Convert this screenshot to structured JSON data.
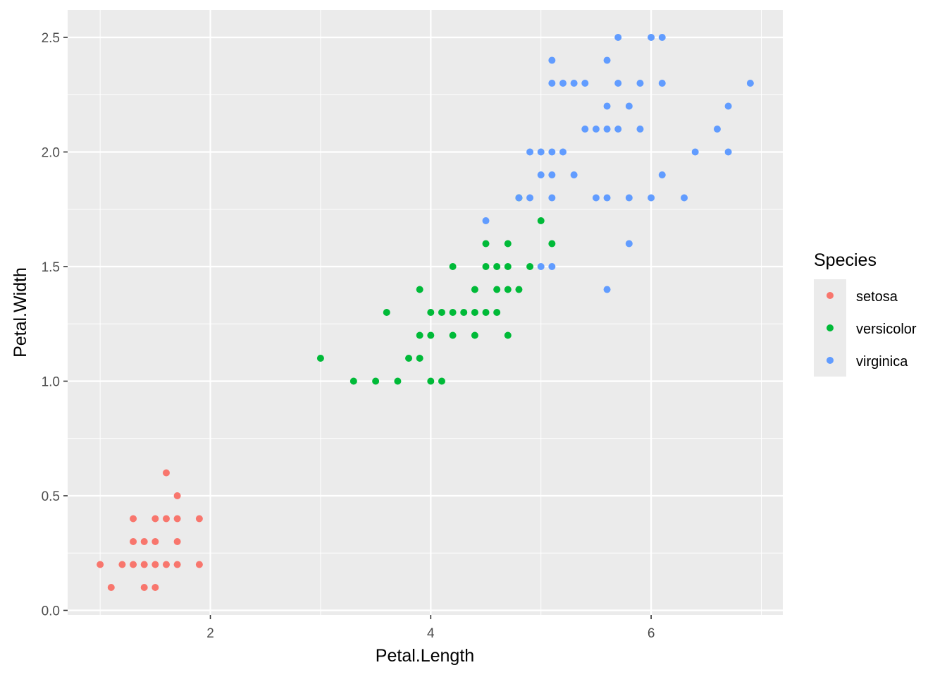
{
  "chart_data": {
    "type": "scatter",
    "xlabel": "Petal.Length",
    "ylabel": "Petal.Width",
    "xlim": [
      0.705,
      7.195
    ],
    "ylim": [
      -0.02,
      2.62
    ],
    "x_ticks": [
      2,
      4,
      6
    ],
    "x_tick_labels": [
      "2",
      "4",
      "6"
    ],
    "y_ticks": [
      0.0,
      0.5,
      1.0,
      1.5,
      2.0,
      2.5
    ],
    "y_tick_labels": [
      "0.0",
      "0.5",
      "1.0",
      "1.5",
      "2.0",
      "2.5"
    ],
    "grid": true,
    "panel_background": "#ebebeb",
    "legend": {
      "title": "Species",
      "position": "right",
      "entries": [
        {
          "label": "setosa",
          "color": "#F8766D"
        },
        {
          "label": "versicolor",
          "color": "#00BA38"
        },
        {
          "label": "virginica",
          "color": "#619CFF"
        }
      ]
    },
    "series": [
      {
        "name": "setosa",
        "color": "#F8766D",
        "points": [
          [
            1.0,
            0.2
          ],
          [
            1.1,
            0.1
          ],
          [
            1.2,
            0.2
          ],
          [
            1.3,
            0.2
          ],
          [
            1.3,
            0.3
          ],
          [
            1.3,
            0.4
          ],
          [
            1.4,
            0.1
          ],
          [
            1.4,
            0.2
          ],
          [
            1.4,
            0.3
          ],
          [
            1.5,
            0.1
          ],
          [
            1.5,
            0.2
          ],
          [
            1.5,
            0.3
          ],
          [
            1.5,
            0.4
          ],
          [
            1.6,
            0.2
          ],
          [
            1.6,
            0.4
          ],
          [
            1.6,
            0.6
          ],
          [
            1.7,
            0.2
          ],
          [
            1.7,
            0.3
          ],
          [
            1.7,
            0.4
          ],
          [
            1.7,
            0.5
          ],
          [
            1.9,
            0.2
          ],
          [
            1.9,
            0.4
          ]
        ]
      },
      {
        "name": "versicolor",
        "color": "#00BA38",
        "points": [
          [
            3.0,
            1.1
          ],
          [
            3.3,
            1.0
          ],
          [
            3.5,
            1.0
          ],
          [
            3.6,
            1.3
          ],
          [
            3.7,
            1.0
          ],
          [
            3.8,
            1.1
          ],
          [
            3.9,
            1.1
          ],
          [
            3.9,
            1.2
          ],
          [
            3.9,
            1.4
          ],
          [
            4.0,
            1.0
          ],
          [
            4.0,
            1.2
          ],
          [
            4.0,
            1.3
          ],
          [
            4.1,
            1.0
          ],
          [
            4.1,
            1.3
          ],
          [
            4.2,
            1.2
          ],
          [
            4.2,
            1.3
          ],
          [
            4.2,
            1.5
          ],
          [
            4.3,
            1.3
          ],
          [
            4.4,
            1.2
          ],
          [
            4.4,
            1.3
          ],
          [
            4.4,
            1.4
          ],
          [
            4.5,
            1.3
          ],
          [
            4.5,
            1.5
          ],
          [
            4.5,
            1.6
          ],
          [
            4.6,
            1.3
          ],
          [
            4.6,
            1.4
          ],
          [
            4.6,
            1.5
          ],
          [
            4.7,
            1.2
          ],
          [
            4.7,
            1.4
          ],
          [
            4.7,
            1.5
          ],
          [
            4.7,
            1.6
          ],
          [
            4.8,
            1.4
          ],
          [
            4.8,
            1.8
          ],
          [
            4.9,
            1.5
          ],
          [
            5.0,
            1.7
          ],
          [
            5.1,
            1.6
          ]
        ]
      },
      {
        "name": "virginica",
        "color": "#619CFF",
        "points": [
          [
            4.5,
            1.7
          ],
          [
            4.8,
            1.8
          ],
          [
            4.9,
            1.8
          ],
          [
            4.9,
            2.0
          ],
          [
            5.0,
            1.5
          ],
          [
            5.0,
            1.9
          ],
          [
            5.0,
            2.0
          ],
          [
            5.1,
            1.5
          ],
          [
            5.1,
            1.8
          ],
          [
            5.1,
            1.9
          ],
          [
            5.1,
            2.0
          ],
          [
            5.1,
            2.3
          ],
          [
            5.1,
            2.4
          ],
          [
            5.2,
            2.0
          ],
          [
            5.2,
            2.3
          ],
          [
            5.3,
            1.9
          ],
          [
            5.3,
            2.3
          ],
          [
            5.4,
            2.1
          ],
          [
            5.4,
            2.3
          ],
          [
            5.5,
            1.8
          ],
          [
            5.5,
            2.1
          ],
          [
            5.6,
            1.4
          ],
          [
            5.6,
            1.8
          ],
          [
            5.6,
            2.1
          ],
          [
            5.6,
            2.2
          ],
          [
            5.6,
            2.4
          ],
          [
            5.7,
            2.1
          ],
          [
            5.7,
            2.3
          ],
          [
            5.7,
            2.5
          ],
          [
            5.8,
            1.6
          ],
          [
            5.8,
            1.8
          ],
          [
            5.8,
            2.2
          ],
          [
            5.9,
            2.1
          ],
          [
            5.9,
            2.3
          ],
          [
            6.0,
            1.8
          ],
          [
            6.0,
            2.5
          ],
          [
            6.1,
            1.9
          ],
          [
            6.1,
            2.3
          ],
          [
            6.1,
            2.5
          ],
          [
            6.3,
            1.8
          ],
          [
            6.4,
            2.0
          ],
          [
            6.6,
            2.1
          ],
          [
            6.7,
            2.0
          ],
          [
            6.7,
            2.2
          ],
          [
            6.9,
            2.3
          ]
        ]
      }
    ]
  }
}
